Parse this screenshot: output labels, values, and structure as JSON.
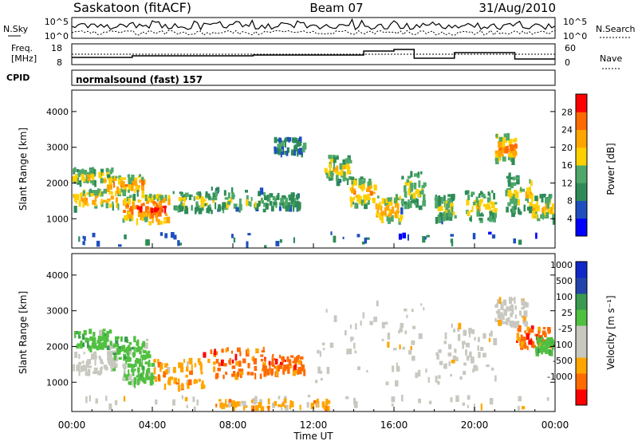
{
  "header": {
    "station": "Saskatoon (fitACF)",
    "beam": "Beam 07",
    "date": "31/Aug/2010"
  },
  "side_labels": {
    "nsky": "N.Sky",
    "freq_line1": "Freq.",
    "freq_line2": "[MHz]",
    "cpid": "CPID",
    "nsearch": "N.Search",
    "nave": "Nave"
  },
  "program": {
    "text": "normalsound (fast) 157"
  },
  "noise_panel": {
    "left_ticks": [
      "10^5",
      "10^0"
    ],
    "right_ticks": [
      "10^5",
      "10^0"
    ]
  },
  "freq_panel": {
    "left_ticks": [
      "18",
      "8"
    ],
    "right_ticks": [
      "60",
      "0"
    ]
  },
  "colors": {
    "power": [
      "#0000ff",
      "#1f4fbf",
      "#2e8b57",
      "#4fa86a",
      "#ffd000",
      "#ffa500",
      "#ff6a00",
      "#ff0000"
    ],
    "velocity": [
      "#ff0000",
      "#ff6a00",
      "#ffa500",
      "#c8c8c0",
      "#c8c8c0",
      "#50c040",
      "#3a9a50",
      "#2244aa",
      "#1028c8"
    ]
  },
  "chart_data": [
    {
      "type": "heatmap",
      "panel": "power",
      "ylabel": "Slant Range [km]",
      "yticks": [
        1000,
        2000,
        3000,
        4000
      ],
      "ylim": [
        180,
        4600
      ],
      "xlim": [
        0,
        24
      ],
      "colorbar": {
        "label": "Power [dB]",
        "ticks": [
          "4",
          "8",
          "12",
          "16",
          "20",
          "24",
          "28"
        ],
        "range": [
          0,
          32
        ]
      },
      "features": [
        {
          "t0": 0.0,
          "t1": 2.3,
          "r0": 1350,
          "r1": 1850,
          "level": 22
        },
        {
          "t0": 0.0,
          "t1": 2.0,
          "r0": 2050,
          "r1": 2450,
          "level": 18
        },
        {
          "t0": 1.5,
          "t1": 3.5,
          "r0": 1800,
          "r1": 2250,
          "level": 24
        },
        {
          "t0": 2.5,
          "t1": 3.8,
          "r0": 1000,
          "r1": 1700,
          "level": 26
        },
        {
          "t0": 3.8,
          "t1": 4.8,
          "r0": 900,
          "r1": 1700,
          "level": 28
        },
        {
          "t0": 5.0,
          "t1": 6.8,
          "r0": 1300,
          "r1": 1800,
          "level": 17
        },
        {
          "t0": 6.8,
          "t1": 9.5,
          "r0": 1250,
          "r1": 1900,
          "level": 15
        },
        {
          "t0": 9.5,
          "t1": 11.3,
          "r0": 1350,
          "r1": 1750,
          "level": 13
        },
        {
          "t0": 10.0,
          "t1": 11.5,
          "r0": 2900,
          "r1": 3300,
          "level": 12
        },
        {
          "t0": 12.5,
          "t1": 13.8,
          "r0": 2100,
          "r1": 2800,
          "level": 19
        },
        {
          "t0": 13.8,
          "t1": 15.0,
          "r0": 1400,
          "r1": 2200,
          "level": 22
        },
        {
          "t0": 15.0,
          "t1": 16.3,
          "r0": 1000,
          "r1": 1700,
          "level": 23
        },
        {
          "t0": 16.3,
          "t1": 17.5,
          "r0": 1300,
          "r1": 2400,
          "level": 16
        },
        {
          "t0": 18.0,
          "t1": 19.0,
          "r0": 1000,
          "r1": 1700,
          "level": 17
        },
        {
          "t0": 19.5,
          "t1": 21.0,
          "r0": 1000,
          "r1": 1800,
          "level": 18
        },
        {
          "t0": 21.0,
          "t1": 22.0,
          "r0": 2700,
          "r1": 3400,
          "level": 24
        },
        {
          "t0": 21.5,
          "t1": 22.8,
          "r0": 1200,
          "r1": 2300,
          "level": 18
        },
        {
          "t0": 22.8,
          "t1": 24.0,
          "r0": 1000,
          "r1": 1700,
          "level": 20
        },
        {
          "t0": 0.0,
          "t1": 24.0,
          "r0": 200,
          "r1": 650,
          "level": 9
        }
      ]
    },
    {
      "type": "heatmap",
      "panel": "velocity",
      "ylabel": "Slant Range [km]",
      "xlabel": "Time UT",
      "yticks": [
        1000,
        2000,
        3000,
        4000
      ],
      "ylim": [
        180,
        4600
      ],
      "xlim": [
        0,
        24
      ],
      "xticks": [
        "00:00",
        "04:00",
        "08:00",
        "12:00",
        "16:00",
        "20:00",
        "00:00"
      ],
      "colorbar": {
        "label": "Velocity [m s⁻¹]",
        "ticks": [
          "1000",
          "500",
          "100",
          "25",
          "-25",
          "-100",
          "-500",
          "-1000"
        ]
      },
      "features": [
        {
          "t0": 0.0,
          "t1": 2.2,
          "r0": 1300,
          "r1": 1900,
          "cls": 4
        },
        {
          "t0": 0.0,
          "t1": 2.2,
          "r0": 2000,
          "r1": 2500,
          "cls": 5
        },
        {
          "t0": 2.0,
          "t1": 3.8,
          "r0": 1700,
          "r1": 2300,
          "cls": 5
        },
        {
          "t0": 2.5,
          "t1": 4.0,
          "r0": 1000,
          "r1": 1700,
          "cls": 5
        },
        {
          "t0": 4.0,
          "t1": 6.5,
          "r0": 900,
          "r1": 1700,
          "cls": 2
        },
        {
          "t0": 6.5,
          "t1": 9.5,
          "r0": 1200,
          "r1": 2000,
          "cls": 1
        },
        {
          "t0": 9.5,
          "t1": 11.5,
          "r0": 1300,
          "r1": 1800,
          "cls": 1
        },
        {
          "t0": 12.0,
          "t1": 17.8,
          "r0": 1000,
          "r1": 3300,
          "cls": 3
        },
        {
          "t0": 18.0,
          "t1": 21.0,
          "r0": 1000,
          "r1": 2700,
          "cls": 3
        },
        {
          "t0": 21.0,
          "t1": 22.5,
          "r0": 2700,
          "r1": 3400,
          "cls": 3
        },
        {
          "t0": 22.0,
          "t1": 24.0,
          "r0": 2000,
          "r1": 2600,
          "cls": 1
        },
        {
          "t0": 23.0,
          "t1": 24.0,
          "r0": 1900,
          "r1": 2300,
          "cls": 5
        },
        {
          "t0": 0.0,
          "t1": 24.0,
          "r0": 200,
          "r1": 650,
          "cls": 3
        },
        {
          "t0": 7.0,
          "t1": 13.0,
          "r0": 250,
          "r1": 550,
          "cls": 2
        }
      ]
    }
  ]
}
